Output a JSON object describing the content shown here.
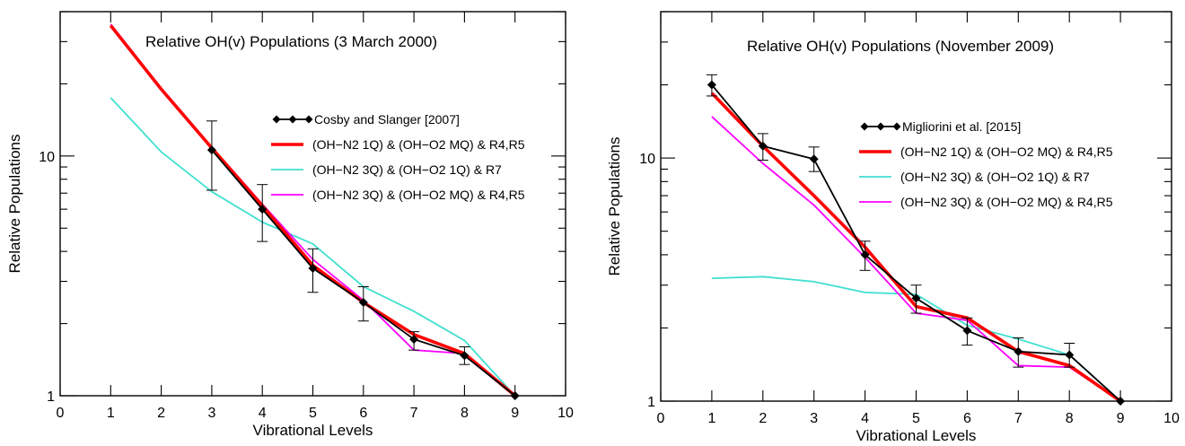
{
  "chart_data": [
    {
      "type": "line",
      "title": "Relative OH(v) Populations (3 March 2000)",
      "xlabel": "Vibrational Levels",
      "ylabel": "Relative Populations",
      "xlim": [
        0,
        10
      ],
      "ylim": [
        1,
        40
      ],
      "yscale": "log",
      "xticks": [
        "0",
        "1",
        "2",
        "3",
        "4",
        "5",
        "6",
        "7",
        "8",
        "9",
        "10"
      ],
      "yticks": [
        {
          "value": 1,
          "label": "1"
        },
        {
          "value": 10,
          "label": "10"
        }
      ],
      "grid": false,
      "legend_position": "right",
      "series": [
        {
          "name": "Cosby and Slanger [2007]",
          "color": "#000000",
          "style": "markers",
          "x": [
            3,
            4,
            5,
            6,
            7,
            8,
            9
          ],
          "values": [
            10.6,
            6.0,
            3.4,
            2.45,
            1.72,
            1.47,
            1.0
          ],
          "err_low": [
            7.2,
            4.4,
            2.7,
            2.05,
            1.55,
            1.35,
            1.0
          ],
          "err_high": [
            14.0,
            7.6,
            4.1,
            2.85,
            1.85,
            1.6,
            1.0
          ]
        },
        {
          "name": "(OH−N2 1Q) & (OH−O2 MQ) & R4,R5",
          "color": "#ff0000",
          "style": "thick",
          "x": [
            1,
            2,
            3,
            4,
            5,
            6,
            7,
            8,
            9
          ],
          "values": [
            35.0,
            19.0,
            10.8,
            6.2,
            3.5,
            2.45,
            1.8,
            1.5,
            1.0
          ]
        },
        {
          "name": "(OH−N2 3Q) & (OH−O2 1Q) & R7",
          "color": "#40e0d0",
          "style": "thin",
          "x": [
            1,
            2,
            3,
            4,
            5,
            6,
            7,
            8,
            9
          ],
          "values": [
            17.5,
            10.4,
            7.1,
            5.3,
            4.3,
            2.85,
            2.25,
            1.7,
            1.0
          ]
        },
        {
          "name": "(OH−N2 3Q) & (OH−O2 MQ) & R4,R5",
          "color": "#ff00ff",
          "style": "thin",
          "x": [
            1,
            2,
            3,
            4,
            5,
            6,
            7,
            8,
            9
          ],
          "values": [
            35.5,
            19.2,
            10.9,
            6.3,
            3.7,
            2.5,
            1.55,
            1.5,
            1.0
          ]
        }
      ]
    },
    {
      "type": "line",
      "title": "Relative OH(v) Populations (November 2009)",
      "xlabel": "Vibrational Levels",
      "ylabel": "Relative Populations",
      "xlim": [
        0,
        10
      ],
      "ylim": [
        1,
        40
      ],
      "yscale": "log",
      "xticks": [
        "0",
        "1",
        "2",
        "3",
        "4",
        "5",
        "6",
        "7",
        "8",
        "9",
        "10"
      ],
      "yticks": [
        {
          "value": 1,
          "label": "1"
        },
        {
          "value": 10,
          "label": "10"
        }
      ],
      "grid": false,
      "legend_position": "right",
      "series": [
        {
          "name": "Migliorini et al. [2015]",
          "color": "#000000",
          "style": "markers",
          "x": [
            1,
            2,
            3,
            4,
            5,
            6,
            7,
            8,
            9
          ],
          "values": [
            20.0,
            11.2,
            9.9,
            4.0,
            2.65,
            1.95,
            1.6,
            1.55,
            1.0
          ],
          "err_low": [
            18.0,
            9.8,
            8.8,
            3.45,
            2.3,
            1.7,
            1.38,
            1.38,
            1.0
          ],
          "err_high": [
            22.0,
            12.6,
            11.1,
            4.55,
            3.0,
            2.2,
            1.82,
            1.73,
            1.0
          ]
        },
        {
          "name": "(OH−N2 1Q) & (OH−O2 MQ) & R4,R5",
          "color": "#ff0000",
          "style": "thick",
          "x": [
            1,
            2,
            3,
            4,
            5,
            6,
            7,
            8,
            9
          ],
          "values": [
            18.5,
            11.2,
            7.0,
            4.3,
            2.45,
            2.2,
            1.6,
            1.4,
            1.0
          ]
        },
        {
          "name": "(OH−N2 3Q) & (OH−O2 1Q) & R7",
          "color": "#40e0d0",
          "style": "thin",
          "x": [
            1,
            2,
            3,
            4,
            5,
            6,
            7,
            8,
            9
          ],
          "values": [
            3.2,
            3.25,
            3.1,
            2.8,
            2.75,
            2.05,
            1.8,
            1.55,
            1.0
          ]
        },
        {
          "name": "(OH−N2 3Q) & (OH−O2 MQ) & R4,R5",
          "color": "#ff00ff",
          "style": "thin",
          "x": [
            1,
            2,
            3,
            4,
            5,
            6,
            7,
            8,
            9
          ],
          "values": [
            14.8,
            9.5,
            6.4,
            3.9,
            2.3,
            2.15,
            1.4,
            1.38,
            1.0
          ]
        }
      ]
    }
  ]
}
